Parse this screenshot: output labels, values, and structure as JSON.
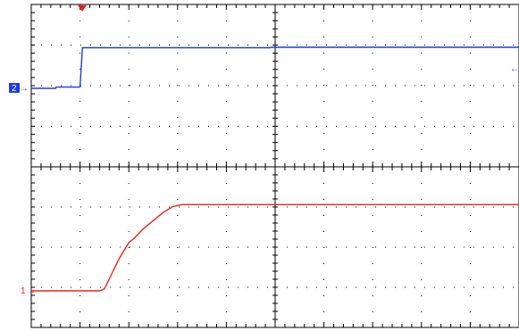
{
  "colors": {
    "background": "#ffffff",
    "grid": "#000000",
    "channel_1": "#e8231c",
    "channel_2": "#1c3fd6",
    "trigger": "#e8231c"
  },
  "markers": {
    "ch1_label": "1",
    "ch2_label": "2",
    "ch1_arrow": "→",
    "ch2_arrow": "→",
    "ch2_offscreen_arrow": "←"
  },
  "chart_data": [
    {
      "type": "line",
      "title": "",
      "xlabel": "",
      "ylabel": "",
      "grid": true,
      "xlim": [
        0,
        10
      ],
      "ylim": [
        0,
        4
      ],
      "series": [
        {
          "color": "#1c3fd6",
          "x": [
            0,
            0.5,
            0.51,
            1.0,
            1.05,
            4.9,
            4.95,
            10
          ],
          "y": [
            0,
            0,
            0.03,
            0.03,
            1.0,
            1.0,
            1.01,
            1.01
          ]
        }
      ]
    },
    {
      "type": "line",
      "title": "",
      "xlabel": "",
      "ylabel": "",
      "grid": true,
      "xlim": [
        0,
        10
      ],
      "ylim": [
        0,
        4
      ],
      "series": [
        {
          "color": "#e8231c",
          "x": [
            0,
            1.4,
            1.5,
            1.6,
            1.8,
            2.0,
            2.1,
            2.3,
            2.5,
            2.7,
            2.9,
            3.1,
            10
          ],
          "y": [
            0,
            0,
            0.05,
            0.3,
            0.8,
            1.2,
            1.3,
            1.55,
            1.75,
            1.95,
            2.1,
            2.15,
            2.15
          ]
        }
      ]
    }
  ]
}
